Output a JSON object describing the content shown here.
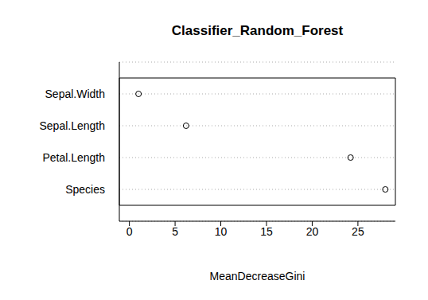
{
  "chart_data": {
    "type": "dot",
    "title": "Classifier_Random_Forest",
    "x_label": "MeanDecreaseGini",
    "categories": [
      "Species",
      "Petal.Length",
      "Sepal.Length",
      "Sepal.Width"
    ],
    "values": [
      28.0,
      24.2,
      6.2,
      1.0
    ],
    "xlim": [
      -1.1,
      29.1
    ],
    "xticks": [
      0,
      5,
      10,
      15,
      20,
      25
    ],
    "grid": true,
    "marker": "circle",
    "color": "#000000"
  }
}
